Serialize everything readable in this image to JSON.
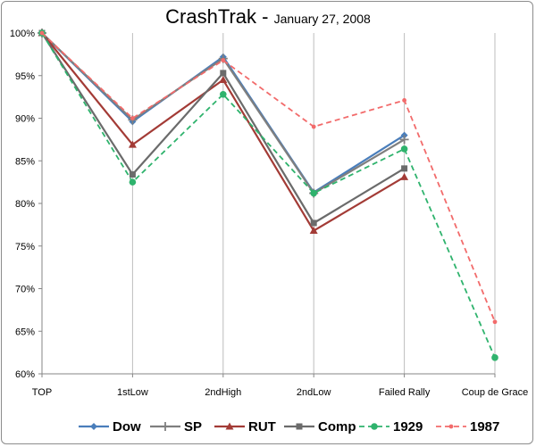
{
  "chart_data": {
    "type": "line",
    "title": "CrashTrak",
    "title_separator": " - ",
    "subtitle": "January 27, 2008",
    "categories": [
      "TOP",
      "1stLow",
      "2ndHigh",
      "2ndLow",
      "Failed Rally",
      "Coup de Grace"
    ],
    "ylim": [
      0.6,
      1.0
    ],
    "yticks": [
      {
        "value": 1.0,
        "label": "100%"
      },
      {
        "value": 0.95,
        "label": "95%"
      },
      {
        "value": 0.9,
        "label": "90%"
      },
      {
        "value": 0.85,
        "label": "85%"
      },
      {
        "value": 0.8,
        "label": "80%"
      },
      {
        "value": 0.75,
        "label": "75%"
      },
      {
        "value": 0.7,
        "label": "70%"
      },
      {
        "value": 0.65,
        "label": "65%"
      },
      {
        "value": 0.6,
        "label": "60%"
      }
    ],
    "grid": "vertical",
    "legend_position": "bottom",
    "series": [
      {
        "name": "Dow",
        "values": [
          1.0,
          0.896,
          0.972,
          0.813,
          0.88,
          null
        ],
        "color": "#4a7ebb",
        "marker": "diamond",
        "dash": false
      },
      {
        "name": "SP",
        "values": [
          1.0,
          0.898,
          0.97,
          0.812,
          0.875,
          null
        ],
        "color": "#7f7f7f",
        "marker": "plus",
        "dash": false
      },
      {
        "name": "RUT",
        "values": [
          1.0,
          0.869,
          0.945,
          0.768,
          0.831,
          null
        ],
        "color": "#a33b36",
        "marker": "triangle",
        "dash": false
      },
      {
        "name": "Comp",
        "values": [
          1.0,
          0.834,
          0.953,
          0.777,
          0.841,
          null
        ],
        "color": "#6b6b6b",
        "marker": "square",
        "dash": false
      },
      {
        "name": "1929",
        "values": [
          1.0,
          0.825,
          0.928,
          0.812,
          0.864,
          0.619
        ],
        "color": "#2fb36d",
        "marker": "circle",
        "dash": true
      },
      {
        "name": "1987",
        "values": [
          1.0,
          0.9,
          0.968,
          0.89,
          0.921,
          0.661
        ],
        "color": "#f26b6b",
        "marker": "dot",
        "dash": true
      }
    ]
  }
}
